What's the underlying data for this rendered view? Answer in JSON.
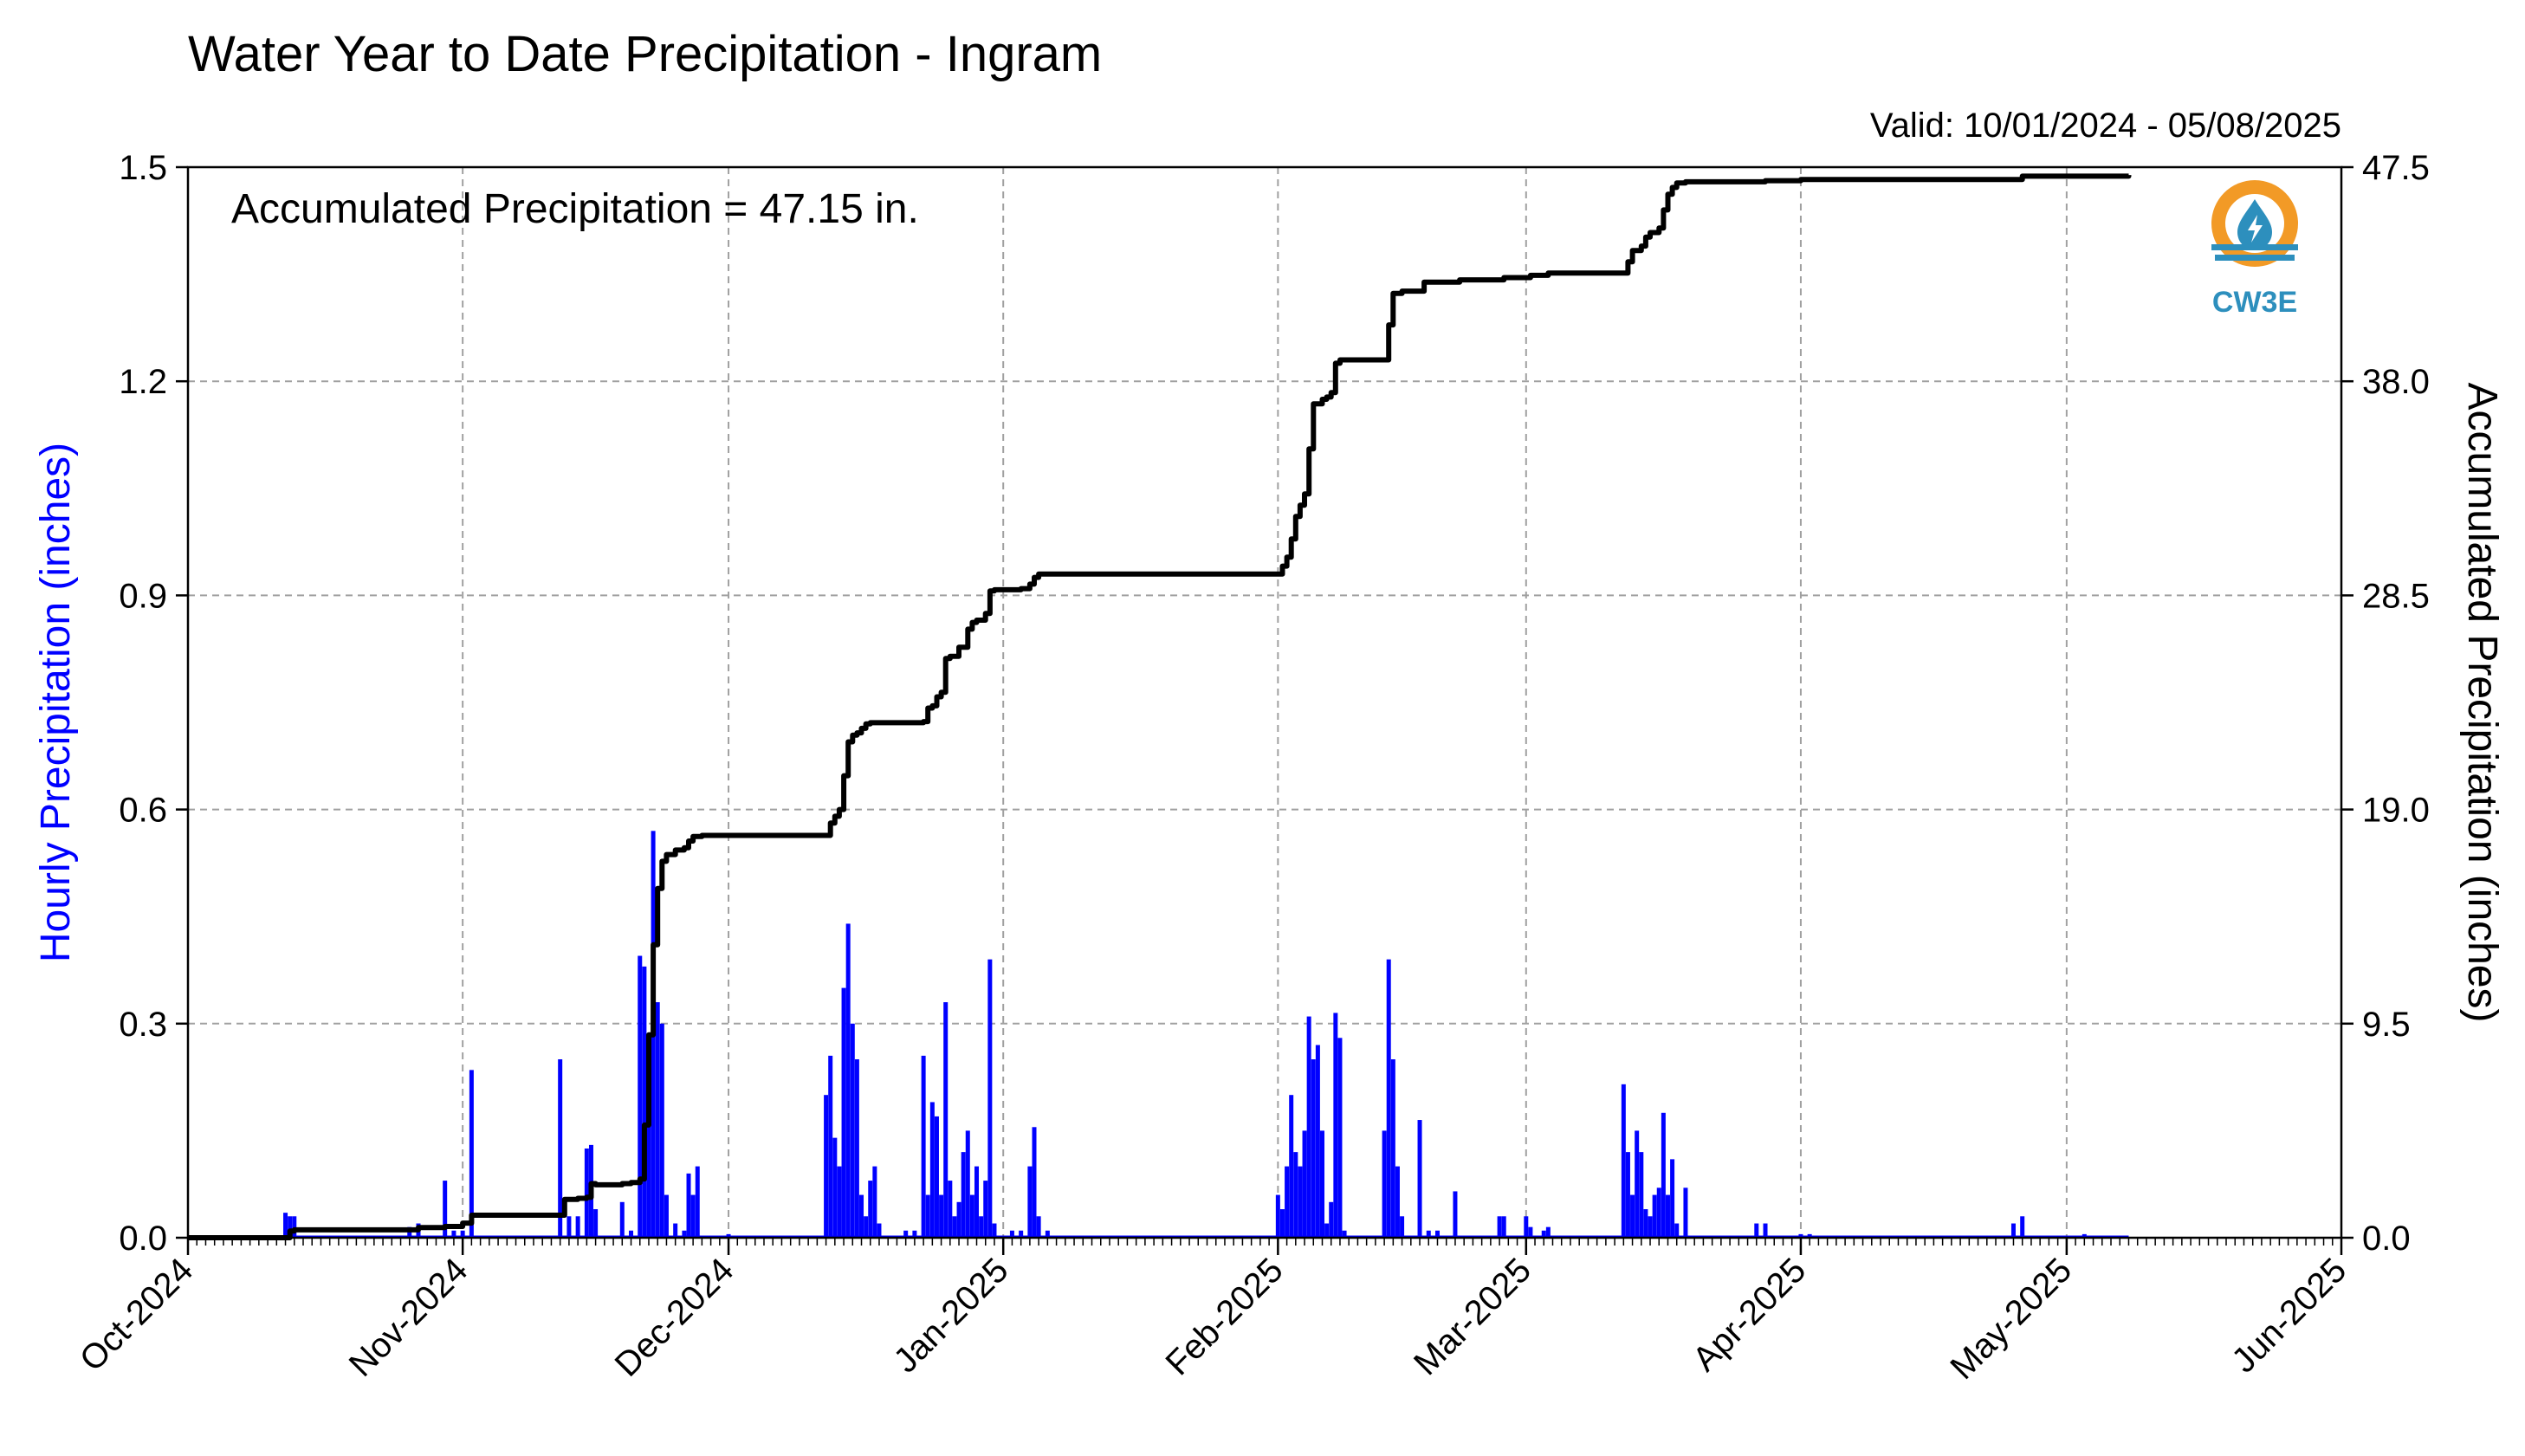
{
  "chart_data": {
    "type": "bar",
    "title": "Water Year to Date Precipitation - Ingram",
    "valid_label": "Valid: 10/01/2024 - 05/08/2025",
    "annotation": "Accumulated Precipitation = 47.15 in.",
    "ylabel_left": "Hourly Precipitation (inches)",
    "ylabel_right": "Accumulated Precipitation (inches)",
    "x_range": [
      "2024-10-01",
      "2025-06-01"
    ],
    "y_left_range": [
      0,
      1.5
    ],
    "y_right_range": [
      0,
      47.5
    ],
    "y_left_ticks": [
      "0.0",
      "0.3",
      "0.6",
      "0.9",
      "1.2",
      "1.5"
    ],
    "y_right_ticks": [
      "0.0",
      "9.5",
      "19.0",
      "28.5",
      "38.0",
      "47.5"
    ],
    "x_ticks": [
      {
        "date": "2024-10-01",
        "label": "Oct-2024"
      },
      {
        "date": "2024-11-01",
        "label": "Nov-2024"
      },
      {
        "date": "2024-12-01",
        "label": "Dec-2024"
      },
      {
        "date": "2025-01-01",
        "label": "Jan-2025"
      },
      {
        "date": "2025-02-01",
        "label": "Feb-2025"
      },
      {
        "date": "2025-03-01",
        "label": "Mar-2025"
      },
      {
        "date": "2025-04-01",
        "label": "Apr-2025"
      },
      {
        "date": "2025-05-01",
        "label": "May-2025"
      },
      {
        "date": "2025-06-01",
        "label": "Jun-2025"
      }
    ],
    "grid": true,
    "series": [
      {
        "name": "Hourly Precipitation",
        "kind": "bar",
        "axis": "left",
        "color": "#0000ff",
        "points": [
          [
            "2024-10-12",
            0.035
          ],
          [
            "2024-10-12T12",
            0.03
          ],
          [
            "2024-10-13",
            0.03
          ],
          [
            "2024-10-26",
            0.015
          ],
          [
            "2024-10-27",
            0.02
          ],
          [
            "2024-10-30",
            0.08
          ],
          [
            "2024-10-31",
            0.01
          ],
          [
            "2024-11-01",
            0.01
          ],
          [
            "2024-11-02",
            0.235
          ],
          [
            "2024-11-12",
            0.25
          ],
          [
            "2024-11-13",
            0.03
          ],
          [
            "2024-11-14",
            0.03
          ],
          [
            "2024-11-15",
            0.125
          ],
          [
            "2024-11-15T12",
            0.13
          ],
          [
            "2024-11-16",
            0.04
          ],
          [
            "2024-11-19",
            0.05
          ],
          [
            "2024-11-20",
            0.01
          ],
          [
            "2024-11-21",
            0.395
          ],
          [
            "2024-11-21T12",
            0.38
          ],
          [
            "2024-11-22",
            0.2
          ],
          [
            "2024-11-22T12",
            0.57
          ],
          [
            "2024-11-23",
            0.33
          ],
          [
            "2024-11-23T12",
            0.3
          ],
          [
            "2024-11-24",
            0.06
          ],
          [
            "2024-11-25",
            0.02
          ],
          [
            "2024-11-26",
            0.01
          ],
          [
            "2024-11-26T12",
            0.09
          ],
          [
            "2024-11-27",
            0.06
          ],
          [
            "2024-11-27T12",
            0.1
          ],
          [
            "2024-12-01",
            0.005
          ],
          [
            "2024-12-12",
            0.2
          ],
          [
            "2024-12-12T12",
            0.255
          ],
          [
            "2024-12-13",
            0.14
          ],
          [
            "2024-12-13T12",
            0.1
          ],
          [
            "2024-12-14",
            0.35
          ],
          [
            "2024-12-14T12",
            0.44
          ],
          [
            "2024-12-15",
            0.3
          ],
          [
            "2024-12-15T12",
            0.25
          ],
          [
            "2024-12-16",
            0.06
          ],
          [
            "2024-12-16T12",
            0.03
          ],
          [
            "2024-12-17",
            0.08
          ],
          [
            "2024-12-17T12",
            0.1
          ],
          [
            "2024-12-18",
            0.02
          ],
          [
            "2024-12-21",
            0.01
          ],
          [
            "2024-12-22",
            0.01
          ],
          [
            "2024-12-23",
            0.255
          ],
          [
            "2024-12-23T12",
            0.06
          ],
          [
            "2024-12-24",
            0.19
          ],
          [
            "2024-12-24T12",
            0.17
          ],
          [
            "2024-12-25",
            0.06
          ],
          [
            "2024-12-25T12",
            0.33
          ],
          [
            "2024-12-26",
            0.08
          ],
          [
            "2024-12-26T12",
            0.03
          ],
          [
            "2024-12-27",
            0.05
          ],
          [
            "2024-12-27T12",
            0.12
          ],
          [
            "2024-12-28",
            0.15
          ],
          [
            "2024-12-28T12",
            0.06
          ],
          [
            "2024-12-29",
            0.1
          ],
          [
            "2024-12-29T12",
            0.03
          ],
          [
            "2024-12-30",
            0.08
          ],
          [
            "2024-12-30T12",
            0.39
          ],
          [
            "2024-12-31",
            0.02
          ],
          [
            "2025-01-02",
            0.01
          ],
          [
            "2025-01-03",
            0.01
          ],
          [
            "2025-01-04",
            0.1
          ],
          [
            "2025-01-04T12",
            0.155
          ],
          [
            "2025-01-05",
            0.03
          ],
          [
            "2025-01-06",
            0.01
          ],
          [
            "2025-02-01",
            0.06
          ],
          [
            "2025-02-01T12",
            0.04
          ],
          [
            "2025-02-02",
            0.1
          ],
          [
            "2025-02-02T12",
            0.2
          ],
          [
            "2025-02-03",
            0.12
          ],
          [
            "2025-02-03T12",
            0.1
          ],
          [
            "2025-02-04",
            0.15
          ],
          [
            "2025-02-04T12",
            0.31
          ],
          [
            "2025-02-05",
            0.25
          ],
          [
            "2025-02-05T12",
            0.27
          ],
          [
            "2025-02-06",
            0.15
          ],
          [
            "2025-02-06T12",
            0.02
          ],
          [
            "2025-02-07",
            0.05
          ],
          [
            "2025-02-07T12",
            0.315
          ],
          [
            "2025-02-08",
            0.28
          ],
          [
            "2025-02-08T12",
            0.01
          ],
          [
            "2025-02-13",
            0.15
          ],
          [
            "2025-02-13T12",
            0.39
          ],
          [
            "2025-02-14",
            0.25
          ],
          [
            "2025-02-14T12",
            0.1
          ],
          [
            "2025-02-15",
            0.03
          ],
          [
            "2025-02-17",
            0.165
          ],
          [
            "2025-02-18",
            0.01
          ],
          [
            "2025-02-19",
            0.01
          ],
          [
            "2025-02-21",
            0.065
          ],
          [
            "2025-02-26",
            0.03
          ],
          [
            "2025-02-26T12",
            0.03
          ],
          [
            "2025-03-01",
            0.03
          ],
          [
            "2025-03-01T12",
            0.015
          ],
          [
            "2025-03-03",
            0.01
          ],
          [
            "2025-03-03T12",
            0.015
          ],
          [
            "2025-03-12",
            0.215
          ],
          [
            "2025-03-12T12",
            0.12
          ],
          [
            "2025-03-13",
            0.06
          ],
          [
            "2025-03-13T12",
            0.15
          ],
          [
            "2025-03-14",
            0.12
          ],
          [
            "2025-03-14T12",
            0.04
          ],
          [
            "2025-03-15",
            0.03
          ],
          [
            "2025-03-15T12",
            0.06
          ],
          [
            "2025-03-16",
            0.07
          ],
          [
            "2025-03-16T12",
            0.175
          ],
          [
            "2025-03-17",
            0.06
          ],
          [
            "2025-03-17T12",
            0.11
          ],
          [
            "2025-03-18",
            0.02
          ],
          [
            "2025-03-19",
            0.07
          ],
          [
            "2025-03-27",
            0.02
          ],
          [
            "2025-03-28",
            0.02
          ],
          [
            "2025-04-01",
            0.005
          ],
          [
            "2025-04-02",
            0.005
          ],
          [
            "2025-04-25",
            0.02
          ],
          [
            "2025-04-26",
            0.03
          ],
          [
            "2025-05-03",
            0.005
          ]
        ]
      },
      {
        "name": "Accumulated Precipitation",
        "kind": "step-line",
        "axis": "right",
        "color": "#000000",
        "points": [
          [
            "2024-10-01",
            0.0
          ],
          [
            "2024-10-12",
            0.0
          ],
          [
            "2024-10-12T12",
            0.3
          ],
          [
            "2024-10-13",
            0.35
          ],
          [
            "2024-10-27",
            0.45
          ],
          [
            "2024-10-30",
            0.5
          ],
          [
            "2024-11-01",
            0.65
          ],
          [
            "2024-11-02",
            1.0
          ],
          [
            "2024-11-12",
            1.0
          ],
          [
            "2024-11-12T12",
            1.7
          ],
          [
            "2024-11-14",
            1.75
          ],
          [
            "2024-11-15",
            1.8
          ],
          [
            "2024-11-15T12",
            2.4
          ],
          [
            "2024-11-16",
            2.35
          ],
          [
            "2024-11-19",
            2.4
          ],
          [
            "2024-11-20",
            2.45
          ],
          [
            "2024-11-21",
            2.6
          ],
          [
            "2024-11-21T12",
            5.0
          ],
          [
            "2024-11-22",
            9.0
          ],
          [
            "2024-11-22T12",
            13.0
          ],
          [
            "2024-11-23",
            15.5
          ],
          [
            "2024-11-23T12",
            16.7
          ],
          [
            "2024-11-24",
            17.0
          ],
          [
            "2024-11-25",
            17.2
          ],
          [
            "2024-11-26",
            17.3
          ],
          [
            "2024-11-26T12",
            17.6
          ],
          [
            "2024-11-27",
            17.8
          ],
          [
            "2024-11-28",
            17.85
          ],
          [
            "2024-12-12",
            17.85
          ],
          [
            "2024-12-12T12",
            18.4
          ],
          [
            "2024-12-13",
            18.7
          ],
          [
            "2024-12-13T12",
            19.0
          ],
          [
            "2024-12-14",
            20.5
          ],
          [
            "2024-12-14T12",
            22.0
          ],
          [
            "2024-12-15",
            22.3
          ],
          [
            "2024-12-15T12",
            22.4
          ],
          [
            "2024-12-16",
            22.6
          ],
          [
            "2024-12-16T12",
            22.8
          ],
          [
            "2024-12-17",
            22.85
          ],
          [
            "2024-12-23",
            22.9
          ],
          [
            "2024-12-23T12",
            23.5
          ],
          [
            "2024-12-24",
            23.6
          ],
          [
            "2024-12-24T12",
            24.0
          ],
          [
            "2024-12-25",
            24.2
          ],
          [
            "2024-12-25T12",
            25.7
          ],
          [
            "2024-12-26",
            25.8
          ],
          [
            "2024-12-27",
            26.2
          ],
          [
            "2024-12-28",
            27.0
          ],
          [
            "2024-12-28T12",
            27.3
          ],
          [
            "2024-12-29",
            27.4
          ],
          [
            "2024-12-30",
            27.7
          ],
          [
            "2024-12-30T12",
            28.7
          ],
          [
            "2024-12-31",
            28.75
          ],
          [
            "2025-01-03",
            28.8
          ],
          [
            "2025-01-04",
            29.0
          ],
          [
            "2025-01-04T12",
            29.3
          ],
          [
            "2025-01-05",
            29.45
          ],
          [
            "2025-02-01",
            29.45
          ],
          [
            "2025-02-01T12",
            29.8
          ],
          [
            "2025-02-02",
            30.2
          ],
          [
            "2025-02-02T12",
            31.0
          ],
          [
            "2025-02-03",
            32.0
          ],
          [
            "2025-02-03T12",
            32.5
          ],
          [
            "2025-02-04",
            33.0
          ],
          [
            "2025-02-04T12",
            35.0
          ],
          [
            "2025-02-05",
            37.0
          ],
          [
            "2025-02-06",
            37.2
          ],
          [
            "2025-02-06T12",
            37.3
          ],
          [
            "2025-02-07",
            37.5
          ],
          [
            "2025-02-07T12",
            38.8
          ],
          [
            "2025-02-08",
            38.95
          ],
          [
            "2025-02-13",
            38.95
          ],
          [
            "2025-02-13T12",
            40.5
          ],
          [
            "2025-02-14",
            41.9
          ],
          [
            "2025-02-15",
            42.0
          ],
          [
            "2025-02-17",
            42.0
          ],
          [
            "2025-02-17T12",
            42.4
          ],
          [
            "2025-02-21",
            42.4
          ],
          [
            "2025-02-21T12",
            42.5
          ],
          [
            "2025-02-26",
            42.5
          ],
          [
            "2025-02-26T12",
            42.6
          ],
          [
            "2025-03-01",
            42.6
          ],
          [
            "2025-03-01T12",
            42.7
          ],
          [
            "2025-03-03",
            42.7
          ],
          [
            "2025-03-03T12",
            42.8
          ],
          [
            "2025-03-12",
            42.8
          ],
          [
            "2025-03-12T12",
            43.3
          ],
          [
            "2025-03-13",
            43.8
          ],
          [
            "2025-03-14",
            44.0
          ],
          [
            "2025-03-14T12",
            44.4
          ],
          [
            "2025-03-15",
            44.6
          ],
          [
            "2025-03-16",
            44.8
          ],
          [
            "2025-03-16T12",
            45.6
          ],
          [
            "2025-03-17",
            46.3
          ],
          [
            "2025-03-17T12",
            46.6
          ],
          [
            "2025-03-18",
            46.8
          ],
          [
            "2025-03-19",
            46.85
          ],
          [
            "2025-03-27",
            46.85
          ],
          [
            "2025-03-28",
            46.9
          ],
          [
            "2025-04-01",
            46.95
          ],
          [
            "2025-04-25",
            46.95
          ],
          [
            "2025-04-26",
            47.1
          ],
          [
            "2025-05-08",
            47.15
          ]
        ]
      }
    ]
  },
  "logo": {
    "label": "CW3E",
    "ring_color": "#f29a26",
    "drop_color": "#2d8fbd"
  }
}
